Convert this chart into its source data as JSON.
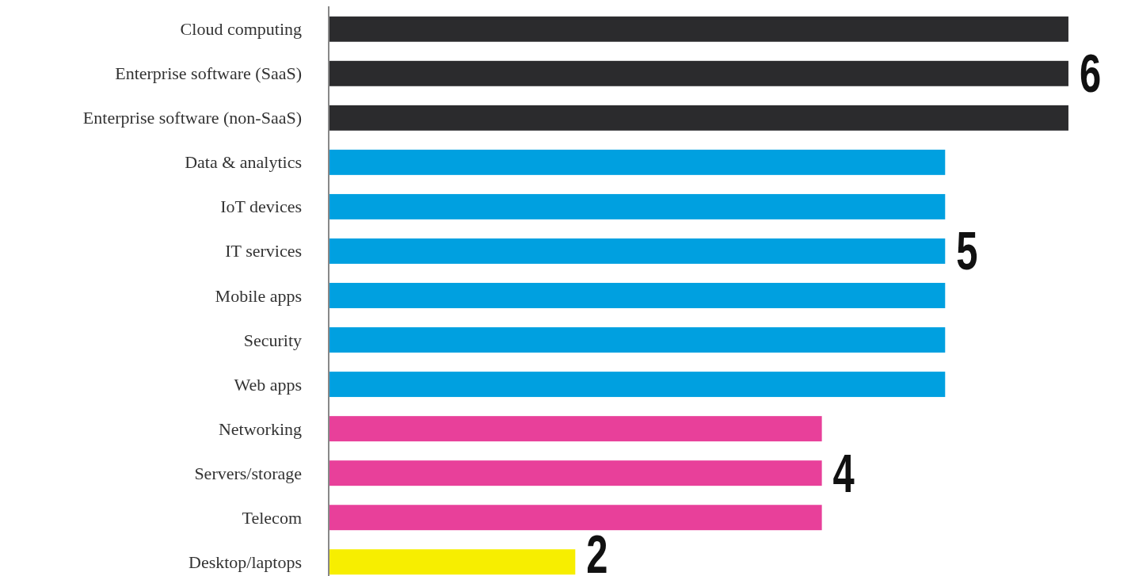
{
  "chart_data": {
    "type": "bar",
    "orientation": "horizontal",
    "categories": [
      "Cloud computing",
      "Enterprise software (SaaS)",
      "Enterprise software (non-SaaS)",
      "Data & analytics",
      "IoT devices",
      "IT services",
      "Mobile apps",
      "Security",
      "Web apps",
      "Networking",
      "Servers/storage",
      "Telecom",
      "Desktop/laptops"
    ],
    "values": [
      6,
      6,
      6,
      5,
      5,
      5,
      5,
      5,
      5,
      4,
      4,
      4,
      2
    ],
    "colors": [
      "#2b2b2d",
      "#2b2b2d",
      "#2b2b2d",
      "#00a0e0",
      "#00a0e0",
      "#00a0e0",
      "#00a0e0",
      "#00a0e0",
      "#00a0e0",
      "#e8409a",
      "#e8409a",
      "#e8409a",
      "#f7ee00"
    ],
    "value_labels": [
      null,
      "6",
      null,
      null,
      null,
      "5",
      null,
      null,
      null,
      null,
      "4",
      null,
      "2"
    ]
  }
}
